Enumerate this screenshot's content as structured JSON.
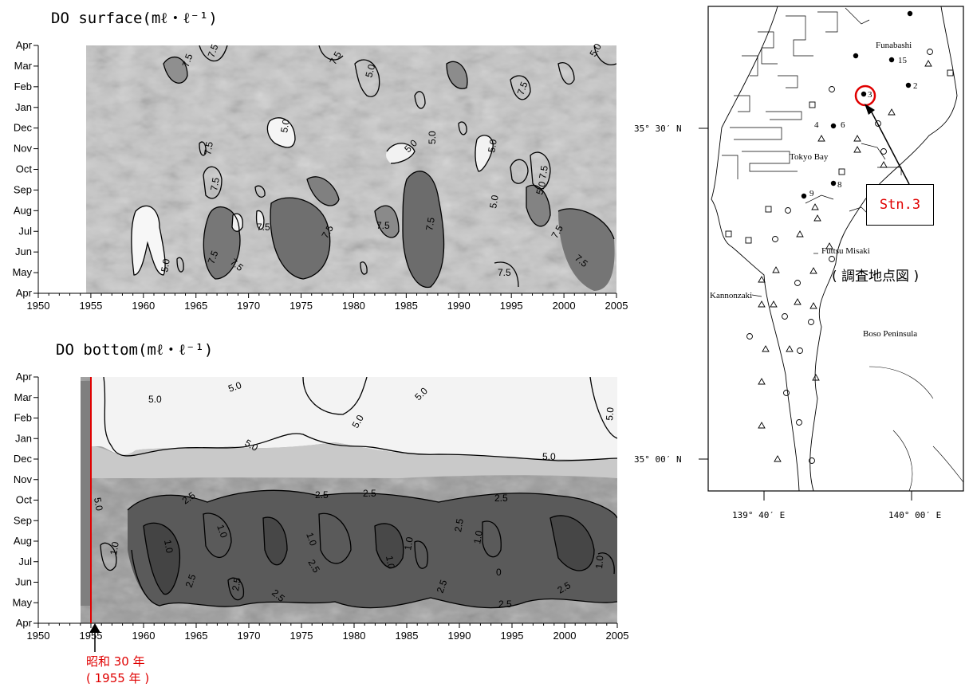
{
  "chart_data": [
    {
      "type": "heatmap",
      "title": "DO surface(mℓ・ℓ⁻¹)",
      "x_ticks": [
        "1950",
        "1955",
        "1960",
        "1965",
        "1970",
        "1975",
        "1980",
        "1985",
        "1990",
        "1995",
        "2000",
        "2005"
      ],
      "y_ticks": [
        "Apr",
        "May",
        "Jun",
        "Jul",
        "Aug",
        "Sep",
        "Oct",
        "Nov",
        "Dec",
        "Jan",
        "Feb",
        "Mar",
        "Apr"
      ],
      "xlim": [
        1950,
        2005
      ],
      "data_start_year": 1954,
      "contour_levels": [
        "5.0",
        "7.5"
      ],
      "contour_labels": [
        "7.5",
        "7.5",
        "5.0",
        "7.5",
        "5.0",
        "5.0",
        "7.5",
        "5.0",
        "7.5",
        "5.0",
        "7.5",
        "7.5",
        "5.0",
        "7.5",
        "5.0",
        "7.5",
        "7.5",
        "7.5",
        "7.5",
        "7.5",
        "7.5",
        "7.5",
        "7.5",
        "5.0",
        "5.0"
      ]
    },
    {
      "type": "heatmap",
      "title": "DO bottom(mℓ・ℓ⁻¹)",
      "x_ticks": [
        "1950",
        "1955",
        "1960",
        "1965",
        "1970",
        "1975",
        "1980",
        "1985",
        "1990",
        "1995",
        "2000",
        "2005"
      ],
      "y_ticks": [
        "Apr",
        "May",
        "Jun",
        "Jul",
        "Aug",
        "Sep",
        "Oct",
        "Nov",
        "Dec",
        "Jan",
        "Feb",
        "Mar",
        "Apr"
      ],
      "xlim": [
        1950,
        2005
      ],
      "data_start_year": 1954,
      "contour_levels": [
        "1.0",
        "2.5",
        "5.0"
      ],
      "contour_labels": [
        "5.0",
        "5.0",
        "5.0",
        "5.0",
        "5.0",
        "5.0",
        "5.0",
        "2.5",
        "2.5",
        "2.5",
        "2.5",
        "5.0",
        "1.0",
        "1.0",
        "1.0",
        "1.0",
        "1.0",
        "1.0",
        "1.0",
        "1.0",
        "2.5",
        "2.5",
        "2.5",
        "2.5",
        "2.5",
        "2.5",
        "2.5",
        "2.5",
        "0"
      ],
      "marker_year": 1955
    }
  ],
  "annotations": {
    "marker_label_line1": "昭和 30 年",
    "marker_label_line2": "( 1955 年 )",
    "station_label": "Stn.3",
    "map_caption": "( 調査地点図 )",
    "accent_color": "#e00000"
  },
  "map": {
    "place_labels": [
      "Funabashi",
      "Tokyo Bay",
      "Futtsu Misaki",
      "Kannonzaki",
      "Boso Peninsula"
    ],
    "station_numbers": [
      "15",
      "2",
      "3",
      "4",
      "6",
      "8",
      "9"
    ],
    "lat_labels": [
      "35° 30′ N",
      "35° 00′ N"
    ],
    "lon_labels": [
      "139° 40′ E",
      "140° 00′ E"
    ]
  }
}
